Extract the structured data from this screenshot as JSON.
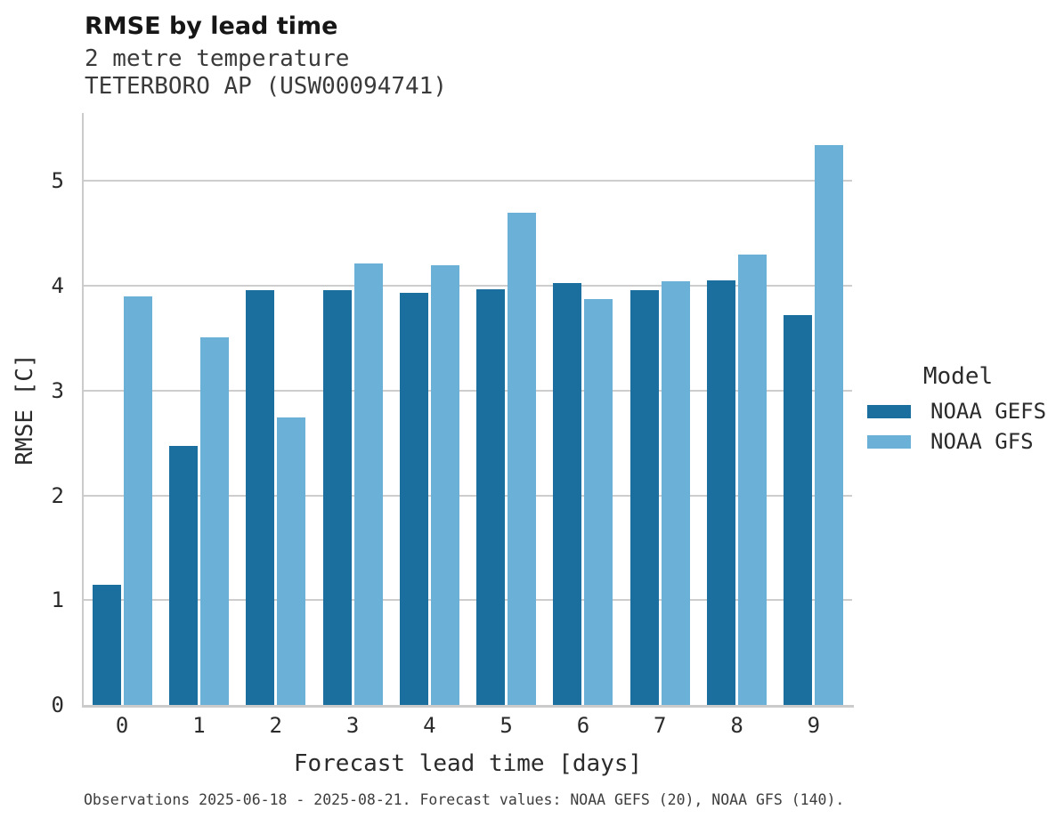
{
  "header": {
    "title": "RMSE by lead time",
    "subtitle1": "2 metre temperature",
    "subtitle2": "TETERBORO AP (USW00094741)"
  },
  "footer": {
    "text": "Observations 2025-06-18 - 2025-08-21. Forecast values: NOAA GEFS (20), NOAA GFS (140)."
  },
  "legend": {
    "title": "Model",
    "items": [
      {
        "label": "NOAA GEFS",
        "color": "#1a6f9e"
      },
      {
        "label": "NOAA GFS",
        "color": "#6ab0d7"
      }
    ]
  },
  "colors": {
    "noaa_gefs": "#1a6f9e",
    "noaa_gfs": "#6ab0d7",
    "gridline": "#cdcdcd",
    "spine": "#cbcbcb"
  },
  "chart_data": {
    "type": "bar",
    "title": "RMSE by lead time",
    "subtitle": [
      "2 metre temperature",
      "TETERBORO AP (USW00094741)"
    ],
    "xlabel": "Forecast lead time [days]",
    "ylabel": "RMSE [C]",
    "categories": [
      "0",
      "1",
      "2",
      "3",
      "4",
      "5",
      "6",
      "7",
      "8",
      "9"
    ],
    "series": [
      {
        "name": "NOAA GEFS",
        "color": "#1a6f9e",
        "values": [
          1.15,
          2.47,
          3.96,
          3.96,
          3.93,
          3.97,
          4.03,
          3.96,
          4.05,
          3.72
        ]
      },
      {
        "name": "NOAA GFS",
        "color": "#6ab0d7",
        "values": [
          3.9,
          3.51,
          2.74,
          4.21,
          4.2,
          4.7,
          3.87,
          4.04,
          4.3,
          5.34
        ]
      }
    ],
    "ylim": [
      0,
      5.64
    ],
    "yticks": [
      0,
      1,
      2,
      3,
      4,
      5
    ],
    "grid": "horizontal",
    "legend_title": "Model",
    "legend_position": "right",
    "caption": "Observations 2025-06-18 - 2025-08-21. Forecast values: NOAA GEFS (20), NOAA GFS (140)."
  }
}
